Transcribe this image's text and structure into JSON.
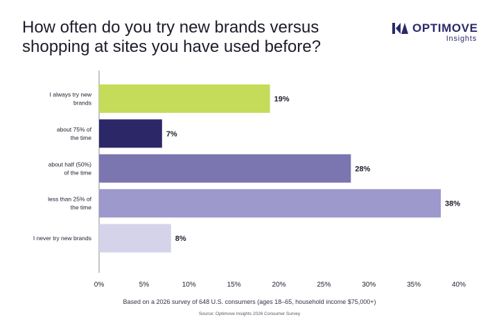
{
  "header": {
    "title_line1": "How often do you try new brands versus",
    "title_line2": "shopping at sites you have used before?",
    "brand_name": "OPTIMOVE",
    "brand_sub": "Insights"
  },
  "colors": {
    "bar_1": "#c5db5a",
    "bar_2": "#2c2868",
    "bar_3": "#7b76b0",
    "bar_4": "#9d99cd",
    "bar_5": "#d5d3ea",
    "brand": "#2b2a6b",
    "axis": "#888888"
  },
  "chart_data": {
    "type": "bar",
    "orientation": "horizontal",
    "title": "How often do you try new brands versus shopping at sites you have used before?",
    "categories": [
      [
        "I always try new",
        "brands"
      ],
      [
        "about 75% of",
        "the time"
      ],
      [
        "about half (50%)",
        "of the time"
      ],
      [
        "less than 25% of",
        "the time"
      ],
      [
        "I never try new brands"
      ]
    ],
    "values": [
      19,
      7,
      28,
      38,
      8
    ],
    "value_labels": [
      "19%",
      "7%",
      "28%",
      "38%",
      "8%"
    ],
    "xlim": [
      0,
      40
    ],
    "xticks": [
      0,
      5,
      10,
      15,
      20,
      25,
      30,
      35,
      40
    ],
    "xtick_labels": [
      "0%",
      "5%",
      "10%",
      "15%",
      "20%",
      "25%",
      "30%",
      "35%",
      "40%"
    ],
    "xlabel": "",
    "ylabel": "",
    "grid": false
  },
  "footer": {
    "note": "Based on a 2026 survey of 648 U.S. consumers (ages 18–65, household income $75,000+)",
    "source": "Source: Optimove Insights 2026 Consumer Survey"
  }
}
